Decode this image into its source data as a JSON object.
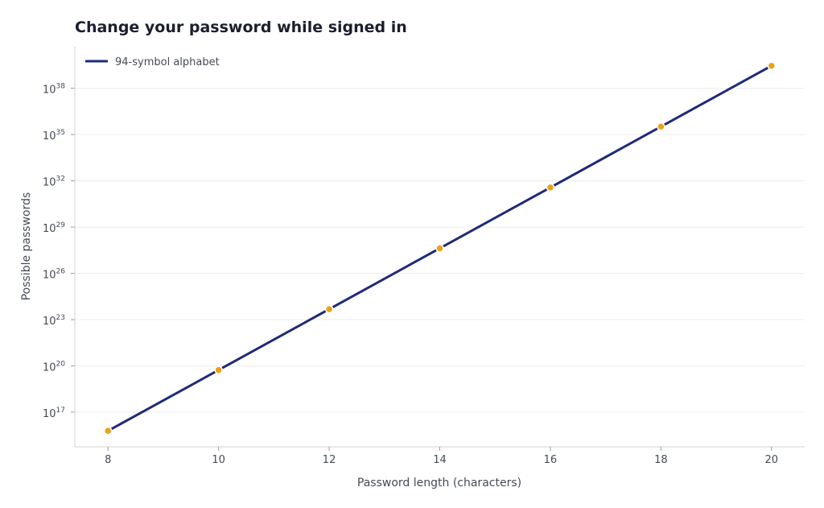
{
  "chart_data": {
    "type": "line",
    "title": "Change your password while signed in",
    "xlabel": "Password length (characters)",
    "ylabel": "Possible passwords",
    "y_scale": "log",
    "xlim": [
      7.4,
      20.6
    ],
    "ylim_exponent": [
      14.75,
      40.7
    ],
    "x_ticks": [
      "8",
      "10",
      "12",
      "14",
      "16",
      "18",
      "20"
    ],
    "y_tick_base": "10",
    "y_tick_exponents": [
      "17",
      "20",
      "23",
      "26",
      "29",
      "32",
      "35",
      "38"
    ],
    "grid": "horizontal",
    "legend_position": "top-left",
    "series": [
      {
        "name": "94-symbol alphabet",
        "x": [
          8,
          10,
          12,
          14,
          16,
          18,
          20
        ],
        "y_log10": [
          15.785,
          19.732,
          23.678,
          27.624,
          31.57,
          35.517,
          39.463
        ],
        "line_color": "#1e2a78",
        "marker_color": "#e8a317"
      }
    ]
  }
}
